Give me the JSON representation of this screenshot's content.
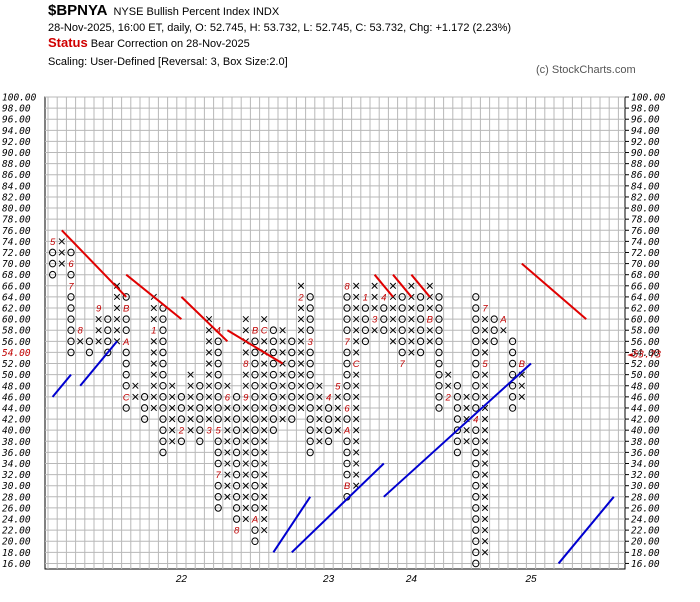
{
  "header": {
    "symbol": "$BPNYA",
    "description": "NYSE Bullish Percent Index  INDX",
    "ohlc_line": "28-Nov-2025, 16:00 ET, daily, O: 52.745, H: 53.732, L: 52.745, C: 53.732, Chg: +1.172 (2.23%)",
    "status_label": "Status",
    "status_text": "Bear Correction on 28-Nov-2025",
    "scaling": "Scaling: User-Defined [Reversal: 3, Box Size:2.0]",
    "copyright": "(c) StockCharts.com"
  },
  "chart_data": {
    "type": "point-and-figure",
    "box_size": 2.0,
    "reversal": 3,
    "ylim": [
      16,
      100
    ],
    "y_ticks": [
      "16.00",
      "18.00",
      "20.00",
      "22.00",
      "24.00",
      "26.00",
      "28.00",
      "30.00",
      "32.00",
      "34.00",
      "36.00",
      "38.00",
      "40.00",
      "42.00",
      "44.00",
      "46.00",
      "48.00",
      "50.00",
      "52.00",
      "54.00",
      "56.00",
      "58.00",
      "60.00",
      "62.00",
      "64.00",
      "66.00",
      "68.00",
      "70.00",
      "72.00",
      "74.00",
      "76.00",
      "78.00",
      "80.00",
      "82.00",
      "84.00",
      "86.00",
      "88.00",
      "90.00",
      "92.00",
      "94.00",
      "96.00",
      "98.00",
      "100.00"
    ],
    "x_labels": [
      {
        "label": "22",
        "column": 14
      },
      {
        "label": "23",
        "column": 30
      },
      {
        "label": "24",
        "column": 39
      },
      {
        "label": "25",
        "column": 52
      }
    ],
    "last_price_label": "53.73",
    "last_price": 53.73,
    "columns": [
      {
        "type": "O",
        "low": 68,
        "high": 74,
        "month_marks": [
          {
            "price": 74,
            "label": "5"
          }
        ]
      },
      {
        "type": "X",
        "low": 70,
        "high": 74
      },
      {
        "type": "O",
        "low": 54,
        "high": 72,
        "month_marks": [
          {
            "price": 70,
            "label": "6"
          },
          {
            "price": 66,
            "label": "7"
          }
        ]
      },
      {
        "type": "X",
        "low": 56,
        "high": 58,
        "month_marks": [
          {
            "price": 58,
            "label": "8"
          }
        ]
      },
      {
        "type": "O",
        "low": 54,
        "high": 56
      },
      {
        "type": "X",
        "low": 56,
        "high": 62,
        "month_marks": [
          {
            "price": 62,
            "label": "9"
          }
        ]
      },
      {
        "type": "O",
        "low": 54,
        "high": 60
      },
      {
        "type": "X",
        "low": 56,
        "high": 66
      },
      {
        "type": "O",
        "low": 44,
        "high": 64,
        "month_marks": [
          {
            "price": 62,
            "label": "B"
          },
          {
            "price": 56,
            "label": "A"
          },
          {
            "price": 46,
            "label": "C"
          }
        ]
      },
      {
        "type": "X",
        "low": 46,
        "high": 48
      },
      {
        "type": "O",
        "low": 42,
        "high": 46
      },
      {
        "type": "X",
        "low": 44,
        "high": 64,
        "month_marks": [
          {
            "price": 58,
            "label": "1"
          }
        ]
      },
      {
        "type": "O",
        "low": 36,
        "high": 62
      },
      {
        "type": "X",
        "low": 38,
        "high": 48
      },
      {
        "type": "O",
        "low": 38,
        "high": 46,
        "month_marks": [
          {
            "price": 40,
            "label": "2"
          }
        ]
      },
      {
        "type": "X",
        "low": 40,
        "high": 50
      },
      {
        "type": "O",
        "low": 38,
        "high": 48
      },
      {
        "type": "X",
        "low": 40,
        "high": 60,
        "month_marks": [
          {
            "price": 40,
            "label": "3"
          }
        ]
      },
      {
        "type": "O",
        "low": 26,
        "high": 58,
        "month_marks": [
          {
            "price": 58,
            "label": "4"
          },
          {
            "price": 40,
            "label": "5"
          },
          {
            "price": 32,
            "label": "7"
          }
        ]
      },
      {
        "type": "X",
        "low": 28,
        "high": 48,
        "month_marks": [
          {
            "price": 46,
            "label": "6"
          }
        ]
      },
      {
        "type": "O",
        "low": 22,
        "high": 46,
        "month_marks": [
          {
            "price": 22,
            "label": "8"
          }
        ]
      },
      {
        "type": "X",
        "low": 24,
        "high": 60,
        "month_marks": [
          {
            "price": 52,
            "label": "8"
          },
          {
            "price": 46,
            "label": "9"
          }
        ]
      },
      {
        "type": "O",
        "low": 20,
        "high": 58,
        "month_marks": [
          {
            "price": 58,
            "label": "B"
          },
          {
            "price": 24,
            "label": "A"
          }
        ]
      },
      {
        "type": "X",
        "low": 22,
        "high": 60,
        "month_marks": [
          {
            "price": 58,
            "label": "C"
          }
        ]
      },
      {
        "type": "O",
        "low": 40,
        "high": 58
      },
      {
        "type": "X",
        "low": 42,
        "high": 58
      },
      {
        "type": "O",
        "low": 42,
        "high": 56
      },
      {
        "type": "X",
        "low": 44,
        "high": 66,
        "month_marks": [
          {
            "price": 64,
            "label": "2"
          }
        ]
      },
      {
        "type": "O",
        "low": 36,
        "high": 64,
        "month_marks": [
          {
            "price": 56,
            "label": "3"
          }
        ]
      },
      {
        "type": "X",
        "low": 38,
        "high": 48
      },
      {
        "type": "O",
        "low": 38,
        "high": 46,
        "month_marks": [
          {
            "price": 46,
            "label": "4"
          }
        ]
      },
      {
        "type": "X",
        "low": 40,
        "high": 48,
        "month_marks": [
          {
            "price": 48,
            "label": "5"
          }
        ]
      },
      {
        "type": "O",
        "low": 28,
        "high": 66,
        "month_marks": [
          {
            "price": 66,
            "label": "8"
          },
          {
            "price": 56,
            "label": "7"
          },
          {
            "price": 44,
            "label": "6"
          },
          {
            "price": 40,
            "label": "A"
          },
          {
            "price": 30,
            "label": "B"
          }
        ]
      },
      {
        "type": "X",
        "low": 30,
        "high": 66,
        "month_marks": [
          {
            "price": 52,
            "label": "C"
          }
        ]
      },
      {
        "type": "O",
        "low": 56,
        "high": 64,
        "month_marks": [
          {
            "price": 64,
            "label": "1"
          }
        ]
      },
      {
        "type": "X",
        "low": 58,
        "high": 66,
        "month_marks": [
          {
            "price": 60,
            "label": "3"
          }
        ]
      },
      {
        "type": "O",
        "low": 58,
        "high": 64,
        "month_marks": [
          {
            "price": 64,
            "label": "4"
          }
        ]
      },
      {
        "type": "X",
        "low": 56,
        "high": 66
      },
      {
        "type": "O",
        "low": 52,
        "high": 64,
        "month_marks": [
          {
            "price": 52,
            "label": "7"
          }
        ]
      },
      {
        "type": "X",
        "low": 54,
        "high": 66
      },
      {
        "type": "O",
        "low": 54,
        "high": 64
      },
      {
        "type": "X",
        "low": 56,
        "high": 66,
        "month_marks": [
          {
            "price": 60,
            "label": "B"
          }
        ]
      },
      {
        "type": "O",
        "low": 44,
        "high": 64
      },
      {
        "type": "X",
        "low": 46,
        "high": 50,
        "month_marks": [
          {
            "price": 46,
            "label": "2"
          }
        ]
      },
      {
        "type": "O",
        "low": 36,
        "high": 48
      },
      {
        "type": "X",
        "low": 38,
        "high": 46
      },
      {
        "type": "O",
        "low": 16,
        "high": 64,
        "month_marks": [
          {
            "price": 42,
            "label": "4"
          }
        ]
      },
      {
        "type": "X",
        "low": 18,
        "high": 62,
        "month_marks": [
          {
            "price": 62,
            "label": "7"
          },
          {
            "price": 52,
            "label": "5"
          }
        ]
      },
      {
        "type": "O",
        "low": 56,
        "high": 60
      },
      {
        "type": "X",
        "low": 58,
        "high": 60,
        "month_marks": [
          {
            "price": 60,
            "label": "A"
          }
        ]
      },
      {
        "type": "O",
        "low": 44,
        "high": 56
      },
      {
        "type": "X",
        "low": 46,
        "high": 52,
        "month_marks": [
          {
            "price": 52,
            "label": "B"
          }
        ]
      }
    ],
    "month_marks_color": "#c00000",
    "trend_lines": [
      {
        "type": "resistance",
        "from_col": 1,
        "from_price": 76,
        "to_col": 8,
        "to_price": 64
      },
      {
        "type": "resistance",
        "from_col": 8,
        "from_price": 68,
        "to_col": 14,
        "to_price": 60
      },
      {
        "type": "resistance",
        "from_col": 14,
        "from_price": 64,
        "to_col": 19,
        "to_price": 56
      },
      {
        "type": "resistance",
        "from_col": 19,
        "from_price": 58,
        "to_col": 25,
        "to_price": 52
      },
      {
        "type": "resistance",
        "from_col": 35,
        "from_price": 68,
        "to_col": 37,
        "to_price": 64
      },
      {
        "type": "resistance",
        "from_col": 37,
        "from_price": 68,
        "to_col": 39,
        "to_price": 64
      },
      {
        "type": "resistance",
        "from_col": 39,
        "from_price": 68,
        "to_col": 41,
        "to_price": 64
      },
      {
        "type": "resistance",
        "from_col": 51,
        "from_price": 70,
        "to_col": 58,
        "to_price": 60
      },
      {
        "type": "support",
        "from_col": 0,
        "from_price": 46,
        "to_col": 2,
        "to_price": 50
      },
      {
        "type": "support",
        "from_col": 3,
        "from_price": 48,
        "to_col": 7,
        "to_price": 56
      },
      {
        "type": "support",
        "from_col": 24,
        "from_price": 18,
        "to_col": 28,
        "to_price": 28
      },
      {
        "type": "support",
        "from_col": 26,
        "from_price": 18,
        "to_col": 36,
        "to_price": 34
      },
      {
        "type": "support",
        "from_col": 36,
        "from_price": 28,
        "to_col": 52,
        "to_price": 52
      },
      {
        "type": "support",
        "from_col": 55,
        "from_price": 16,
        "to_col": 61,
        "to_price": 28
      }
    ],
    "colors": {
      "x": "#000000",
      "o": "#000000",
      "resistance": "#e00000",
      "support": "#0000d0",
      "grid": "#b8b8b8",
      "last_price": "#c00000"
    }
  }
}
